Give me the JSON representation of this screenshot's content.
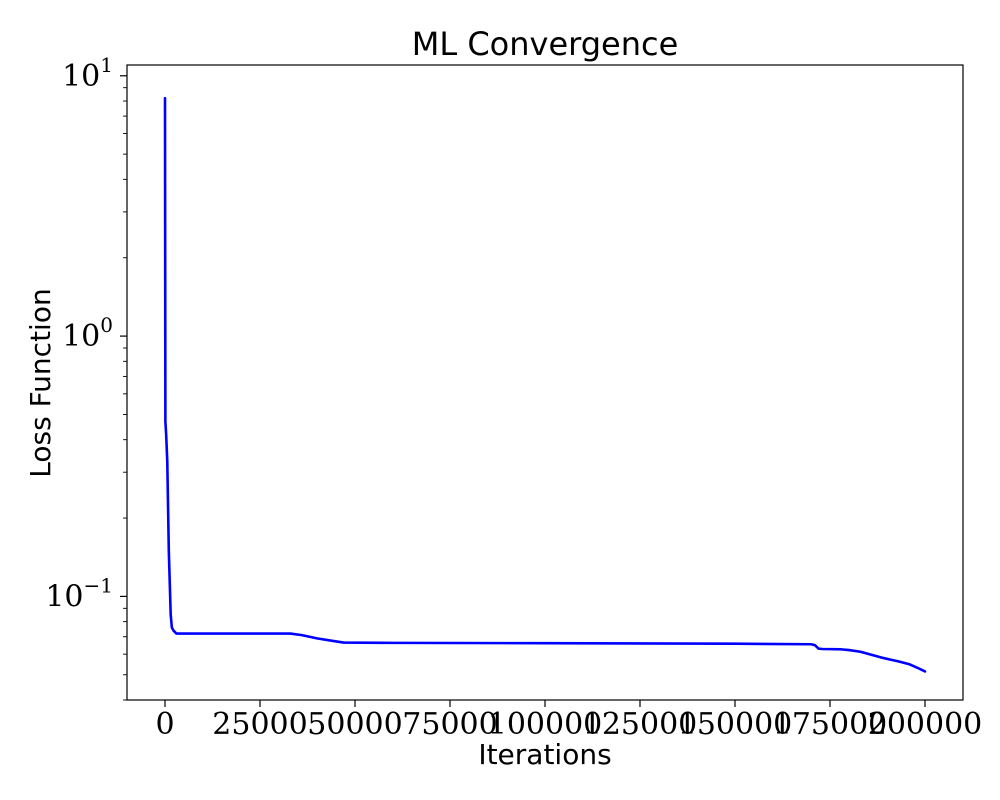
{
  "chart_data": {
    "type": "line",
    "title": "ML Convergence",
    "xlabel": "Iterations",
    "ylabel": "Loss Function",
    "xlim": [
      -10000,
      210000
    ],
    "ylim": [
      0.04,
      11
    ],
    "yscale": "log",
    "grid": false,
    "line_color": "#0000ff",
    "x_ticks": [
      0,
      25000,
      50000,
      75000,
      100000,
      125000,
      150000,
      175000,
      200000
    ],
    "x_tick_labels": [
      "0",
      "25000",
      "50000",
      "75000",
      "100000",
      "125000",
      "150000",
      "175000",
      "200000"
    ],
    "y_ticks": [
      {
        "value": 0.1,
        "base": "10",
        "exponent": "−1"
      },
      {
        "value": 1,
        "base": "10",
        "exponent": "0"
      },
      {
        "value": 10,
        "base": "10",
        "exponent": "1"
      }
    ],
    "series": [
      {
        "x": [
          0,
          100,
          300,
          600,
          1000,
          1500,
          1800,
          2200,
          3000,
          4000,
          10000,
          20000,
          33000,
          36000,
          40000,
          44000,
          47000,
          60000,
          100000,
          150000,
          170000,
          171000,
          172000,
          173000,
          178000,
          180000,
          183000,
          186000,
          189000,
          193000,
          196000,
          198000,
          200000
        ],
        "y": [
          8.2,
          0.47,
          0.42,
          0.33,
          0.15,
          0.085,
          0.076,
          0.074,
          0.072,
          0.072,
          0.072,
          0.072,
          0.072,
          0.071,
          0.069,
          0.0675,
          0.0665,
          0.0663,
          0.0661,
          0.0658,
          0.0655,
          0.065,
          0.063,
          0.0628,
          0.0626,
          0.0622,
          0.0613,
          0.0596,
          0.058,
          0.0563,
          0.0548,
          0.0532,
          0.0515
        ]
      }
    ]
  }
}
